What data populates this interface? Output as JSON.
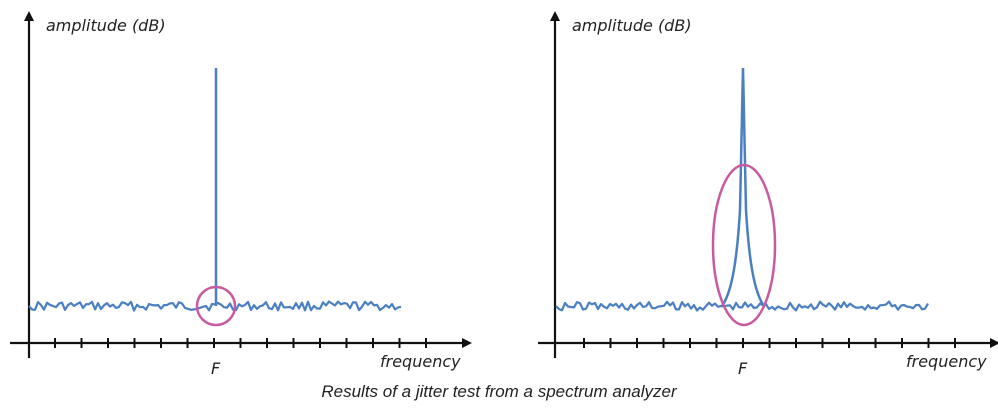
{
  "panels": [
    {
      "y_axis_label": "amplitude (dB)",
      "x_axis_label": "frequency",
      "tick_label": "F",
      "signal": "ideal-line",
      "highlight": "small-circle"
    },
    {
      "y_axis_label": "amplitude (dB)",
      "x_axis_label": "frequency",
      "tick_label": "F",
      "signal": "jitter-broadened-peak",
      "highlight": "tall-ellipse"
    }
  ],
  "caption": "Results of a jitter test from a spectrum analyzer",
  "colors": {
    "signal": "#4a7fc1",
    "highlight": "#c85aa0",
    "axis": "#111111"
  }
}
